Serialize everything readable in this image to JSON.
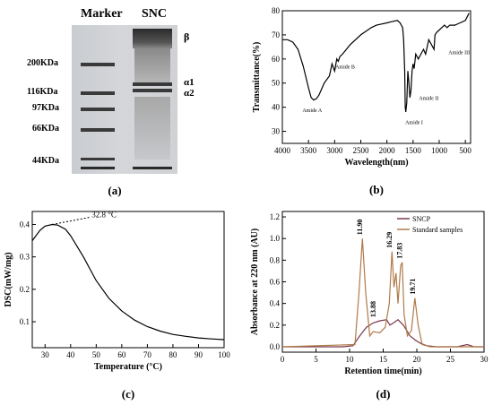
{
  "panel_a": {
    "label": "(a)",
    "lane_headers": [
      "Marker",
      "SNC"
    ],
    "marker_bands": [
      "200KDa",
      "116KDa",
      "97KDa",
      "66KDa",
      "44KDa"
    ],
    "snc_bands": [
      "β",
      "α1",
      "α2"
    ],
    "colors": {
      "gel_bg": "#cfd1d4",
      "band": "#2a2a2a"
    }
  },
  "chart_data": [
    {
      "id": "panel_b",
      "type": "line",
      "panel_label": "(b)",
      "xlabel": "Wavelength(nm)",
      "ylabel": "Transmittance(%)",
      "xlim": [
        4000,
        400
      ],
      "ylim": [
        25,
        80
      ],
      "xticks": [
        4000,
        3500,
        3000,
        2500,
        2000,
        1500,
        1000,
        500
      ],
      "yticks": [
        30,
        40,
        50,
        60,
        70,
        80
      ],
      "x": [
        4000,
        3900,
        3800,
        3700,
        3600,
        3500,
        3450,
        3400,
        3350,
        3300,
        3200,
        3100,
        3050,
        3000,
        2960,
        2930,
        2900,
        2850,
        2700,
        2500,
        2300,
        2200,
        2100,
        2000,
        1900,
        1800,
        1750,
        1700,
        1680,
        1660,
        1650,
        1640,
        1620,
        1600,
        1580,
        1560,
        1540,
        1520,
        1500,
        1480,
        1450,
        1400,
        1350,
        1300,
        1260,
        1240,
        1200,
        1150,
        1100,
        1080,
        1050,
        1000,
        950,
        900,
        850,
        800,
        700,
        600,
        500,
        430
      ],
      "values": [
        68,
        68,
        67,
        64,
        57,
        48,
        44,
        43,
        43.5,
        45,
        50,
        53,
        58,
        55,
        60,
        59,
        61,
        62,
        66,
        70,
        73,
        74,
        74.5,
        75,
        75.5,
        76,
        75,
        73,
        68,
        55,
        40,
        38,
        42,
        55,
        50,
        44,
        47,
        55,
        58,
        56,
        62,
        60,
        62,
        64,
        62,
        64,
        68,
        66,
        64,
        70,
        71,
        72,
        73,
        74,
        73,
        74,
        74,
        75,
        76,
        79
      ],
      "annotations": [
        {
          "text": "Amide A",
          "x": 3430,
          "y": 38
        },
        {
          "text": "Amide B",
          "x": 2800,
          "y": 56
        },
        {
          "text": "Amide I",
          "x": 1480,
          "y": 33
        },
        {
          "text": "Amide II",
          "x": 1200,
          "y": 43
        },
        {
          "text": "Amide III",
          "x": 620,
          "y": 62
        }
      ]
    },
    {
      "id": "panel_c",
      "type": "line",
      "panel_label": "(c)",
      "xlabel": "Temperature (°C)",
      "ylabel": "DSC(mW/mg)",
      "xlim": [
        25,
        100
      ],
      "ylim": [
        0.02,
        0.44
      ],
      "xticks": [
        30,
        40,
        50,
        60,
        70,
        80,
        90,
        100
      ],
      "yticks": [
        0.1,
        0.2,
        0.3,
        0.4
      ],
      "x": [
        25,
        28,
        30,
        32.8,
        35,
        38,
        40,
        45,
        50,
        55,
        60,
        65,
        70,
        75,
        80,
        85,
        90,
        95,
        100
      ],
      "values": [
        0.35,
        0.382,
        0.395,
        0.4,
        0.398,
        0.385,
        0.365,
        0.3,
        0.227,
        0.172,
        0.133,
        0.105,
        0.085,
        0.071,
        0.061,
        0.055,
        0.05,
        0.047,
        0.045
      ],
      "annotations": [
        {
          "text": "32.8 °C",
          "x": 32.8,
          "y": 0.4
        }
      ]
    },
    {
      "id": "panel_d",
      "type": "line",
      "panel_label": "(d)",
      "xlabel": "Retention time(min)",
      "ylabel": "Absorbance at 220 nm (AU)",
      "xlim": [
        0,
        30
      ],
      "ylim": [
        -0.05,
        1.25
      ],
      "xticks": [
        0,
        5,
        10,
        15,
        20,
        25,
        30
      ],
      "yticks": [
        0.0,
        0.2,
        0.4,
        0.6,
        0.8,
        1.0,
        1.2
      ],
      "legend_position": "top-right",
      "series": [
        {
          "name": "SNCP",
          "color": "#7a3a4a",
          "x": [
            0,
            9,
            10.5,
            11.5,
            12.5,
            13.5,
            14.5,
            15.5,
            16,
            16.5,
            17.2,
            18,
            19,
            19.8,
            20.6,
            21.5,
            23,
            26,
            27.5,
            28.5,
            30
          ],
          "values": [
            0,
            0,
            0.01,
            0.1,
            0.18,
            0.22,
            0.24,
            0.25,
            0.2,
            0.22,
            0.25,
            0.2,
            0.1,
            0.06,
            0.03,
            0.01,
            0,
            0,
            0.02,
            0,
            0
          ]
        },
        {
          "name": "Standard samples",
          "color": "#b07a4a",
          "x": [
            0,
            10.8,
            11.4,
            11.9,
            12.4,
            13,
            13.5,
            14.5,
            15.3,
            15.9,
            16.3,
            16.6,
            16.9,
            17.2,
            17.6,
            17.83,
            18.1,
            18.6,
            19.2,
            19.71,
            20.2,
            20.8,
            22,
            30
          ],
          "values": [
            0,
            0.02,
            0.5,
            1.0,
            0.5,
            0.1,
            0.14,
            0.13,
            0.18,
            0.4,
            0.88,
            0.55,
            0.68,
            0.4,
            0.75,
            0.78,
            0.3,
            0.1,
            0.15,
            0.45,
            0.2,
            0.02,
            0,
            0
          ]
        }
      ],
      "annotations": [
        {
          "text": "11.90",
          "x": 11.9,
          "y": 1.0
        },
        {
          "text": "13.88",
          "x": 13.88,
          "y": 0.24
        },
        {
          "text": "16.29",
          "x": 16.29,
          "y": 0.88
        },
        {
          "text": "17.83",
          "x": 17.83,
          "y": 0.78
        },
        {
          "text": "19.71",
          "x": 19.71,
          "y": 0.45
        }
      ]
    }
  ]
}
